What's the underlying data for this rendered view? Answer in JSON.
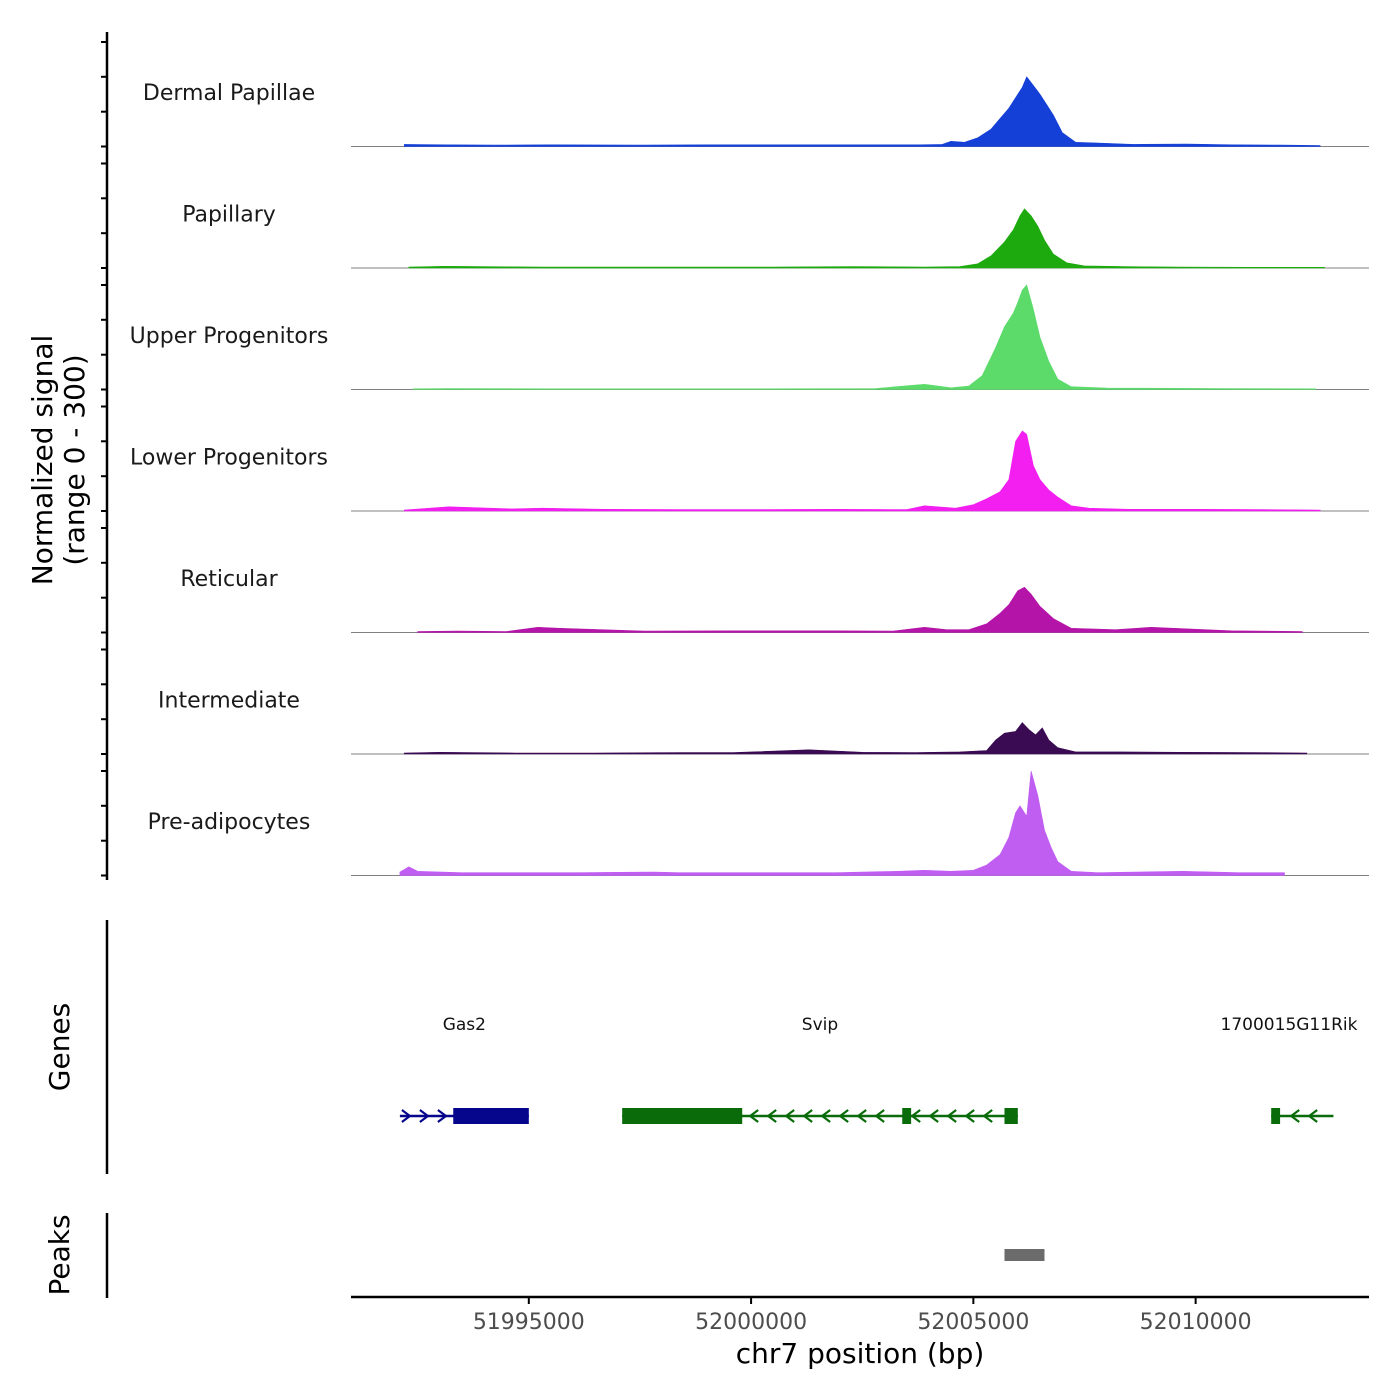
{
  "chart_data": {
    "type": "area",
    "title": "",
    "chromosome": "chr7",
    "xlabel": "chr7 position (bp)",
    "ylabel": [
      "Normalized signal",
      "(range 0 - 300)"
    ],
    "xlim": [
      51991000,
      52013900
    ],
    "ylim": [
      0,
      300
    ],
    "x_ticks": [
      {
        "value": 51995000,
        "label": "51995000"
      },
      {
        "value": 52000000,
        "label": "52000000"
      },
      {
        "value": 52005000,
        "label": "52005000"
      },
      {
        "value": 52010000,
        "label": "52010000"
      }
    ],
    "tracks": [
      {
        "name": "Dermal Papillae",
        "color": "#1440d8",
        "x": [
          51992200,
          51993100,
          51994200,
          51995500,
          51997600,
          51999000,
          52000500,
          52001800,
          52002600,
          52003800,
          52004300,
          52004500,
          52004800,
          52005100,
          52005400,
          52005600,
          52005800,
          52005950,
          52006100,
          52006200,
          52006350,
          52006500,
          52006650,
          52006800,
          52007000,
          52007300,
          52007800,
          52008600,
          52009800,
          52010800,
          52011900,
          52012800
        ],
        "values": [
          6,
          5,
          4,
          5,
          4,
          5,
          5,
          5,
          5,
          5,
          6,
          15,
          12,
          25,
          50,
          80,
          110,
          140,
          170,
          200,
          175,
          150,
          120,
          90,
          40,
          12,
          10,
          6,
          7,
          5,
          4,
          3
        ]
      },
      {
        "name": "Papillary",
        "color": "#1daa0e",
        "x": [
          51992300,
          51993100,
          51995300,
          51997500,
          52000500,
          52002300,
          52003900,
          52004700,
          52005100,
          52005400,
          52005700,
          52005900,
          52006050,
          52006150,
          52006300,
          52006450,
          52006600,
          52006800,
          52007100,
          52007500,
          52008400,
          52009600,
          52011200,
          52012900
        ],
        "values": [
          3,
          5,
          3,
          3,
          3,
          4,
          3,
          4,
          12,
          35,
          75,
          110,
          150,
          170,
          150,
          120,
          80,
          40,
          15,
          6,
          4,
          3,
          2,
          2
        ]
      },
      {
        "name": "Upper Progenitors",
        "color": "#5cdb6a",
        "x": [
          51992400,
          51993200,
          51995500,
          51998000,
          52000300,
          52002800,
          52003900,
          52004500,
          52004900,
          52005200,
          52005500,
          52005700,
          52005900,
          52006000,
          52006100,
          52006200,
          52006350,
          52006500,
          52006700,
          52006900,
          52007200,
          52008000,
          52010500,
          52012700
        ],
        "values": [
          2,
          3,
          2,
          2,
          2,
          3,
          15,
          5,
          10,
          40,
          120,
          180,
          220,
          250,
          285,
          300,
          230,
          150,
          80,
          30,
          8,
          4,
          3,
          2
        ]
      },
      {
        "name": "Lower Progenitors",
        "color": "#f21ff0",
        "x": [
          51992200,
          51993200,
          51994600,
          51995300,
          51996700,
          51998500,
          52000200,
          52001900,
          52003500,
          52003900,
          52004600,
          52005000,
          52005300,
          52005600,
          52005800,
          52005950,
          52006100,
          52006200,
          52006350,
          52006500,
          52006700,
          52006900,
          52007200,
          52007600,
          52008500,
          52010000,
          52011500,
          52012800
        ],
        "values": [
          3,
          12,
          6,
          8,
          5,
          4,
          4,
          5,
          4,
          15,
          8,
          18,
          35,
          55,
          90,
          200,
          230,
          220,
          130,
          90,
          60,
          40,
          15,
          8,
          5,
          5,
          4,
          3
        ]
      },
      {
        "name": "Reticular",
        "color": "#b514a8",
        "x": [
          51992500,
          51993400,
          51994500,
          51995200,
          51995700,
          51997600,
          51999700,
          52001800,
          52003200,
          52003900,
          52004400,
          52004900,
          52005300,
          52005600,
          52005800,
          52006000,
          52006150,
          52006300,
          52006500,
          52006800,
          52007200,
          52008200,
          52009000,
          52010800,
          52012400
        ],
        "values": [
          3,
          4,
          3,
          15,
          12,
          4,
          5,
          5,
          4,
          15,
          8,
          8,
          25,
          55,
          80,
          120,
          130,
          110,
          75,
          40,
          12,
          8,
          15,
          5,
          3
        ]
      },
      {
        "name": "Intermediate",
        "color": "#3a0a52",
        "x": [
          51992200,
          51993000,
          51994700,
          51996500,
          51998400,
          51999600,
          52001300,
          52002500,
          52003700,
          52004700,
          52005300,
          52005500,
          52005700,
          52005950,
          52006100,
          52006250,
          52006400,
          52006550,
          52006700,
          52006900,
          52007300,
          52008300,
          52009600,
          52011300,
          52012500
        ],
        "values": [
          3,
          5,
          3,
          3,
          4,
          4,
          12,
          5,
          4,
          6,
          10,
          40,
          60,
          65,
          90,
          70,
          55,
          75,
          40,
          18,
          6,
          6,
          5,
          4,
          3
        ]
      },
      {
        "name": "Pre-adipocytes",
        "color": "#c05ef2",
        "x": [
          51992100,
          51992300,
          51992500,
          51993500,
          51994300,
          51995300,
          51996000,
          51997800,
          51998400,
          51999900,
          52001400,
          52001900,
          52003300,
          52003900,
          52004500,
          52005000,
          52005300,
          52005600,
          52005800,
          52005950,
          52006050,
          52006200,
          52006300,
          52006450,
          52006600,
          52006750,
          52006900,
          52007200,
          52007800,
          52009700,
          52011000,
          52012000
        ],
        "values": [
          10,
          25,
          12,
          8,
          8,
          8,
          8,
          10,
          8,
          8,
          8,
          8,
          12,
          15,
          12,
          15,
          30,
          60,
          110,
          180,
          200,
          170,
          300,
          230,
          130,
          80,
          40,
          12,
          8,
          12,
          8,
          8
        ]
      }
    ],
    "genes": [
      {
        "name": "Gas2",
        "strand": "+",
        "color": "#06068c",
        "start": 51992100,
        "end": 51995000,
        "exons": [
          {
            "start": 51993300,
            "end": 51995000
          }
        ]
      },
      {
        "name": "Svip",
        "strand": "-",
        "color": "#0a6b0a",
        "start": 51997100,
        "end": 52006000,
        "exons": [
          {
            "start": 51997100,
            "end": 51999800
          },
          {
            "start": 52003400,
            "end": 52003600
          },
          {
            "start": 52005700,
            "end": 52006000
          }
        ]
      },
      {
        "name": "1700015G11Rik",
        "strand": "-",
        "color": "#0a6b0a",
        "start": 52011700,
        "end": 52013100,
        "exons": [
          {
            "start": 52011700,
            "end": 52011900
          }
        ]
      }
    ],
    "peaks": [
      {
        "start": 52005700,
        "end": 52006600,
        "color": "#6b6b6b"
      }
    ],
    "panel_titles": {
      "genes": "Genes",
      "peaks": "Peaks"
    }
  }
}
